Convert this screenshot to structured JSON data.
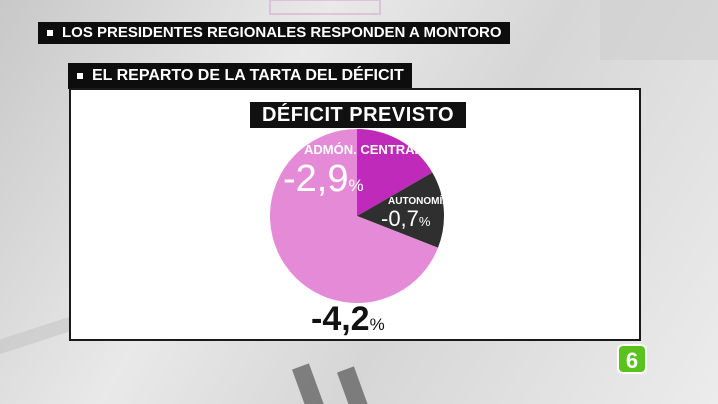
{
  "headlines": {
    "line1": "LOS PRESIDENTES REGIONALES RESPONDEN A MONTORO",
    "line2": "EL REPARTO DE LA TARTA DEL DÉFICIT"
  },
  "chart_title": "DÉFICIT PREVISTO",
  "total_label": "-4,2",
  "percent_sign": "%",
  "colors": {
    "admon_central": "#e58ad7",
    "autonomias": "#c02aba",
    "resto": "#2f2f2f",
    "logo": "#5ac21d"
  },
  "chart_data": {
    "type": "pie",
    "title": "DÉFICIT PREVISTO",
    "total": -4.2,
    "unit": "%",
    "slices": [
      {
        "label": "ADMÓN. CENTRAL",
        "value": -2.9,
        "display": "-2,9"
      },
      {
        "label": "AUTONOMÍAS",
        "value": -0.7,
        "display": "-0,7"
      },
      {
        "label": "",
        "value": -0.6,
        "display": ""
      }
    ]
  },
  "logo_text": "6"
}
